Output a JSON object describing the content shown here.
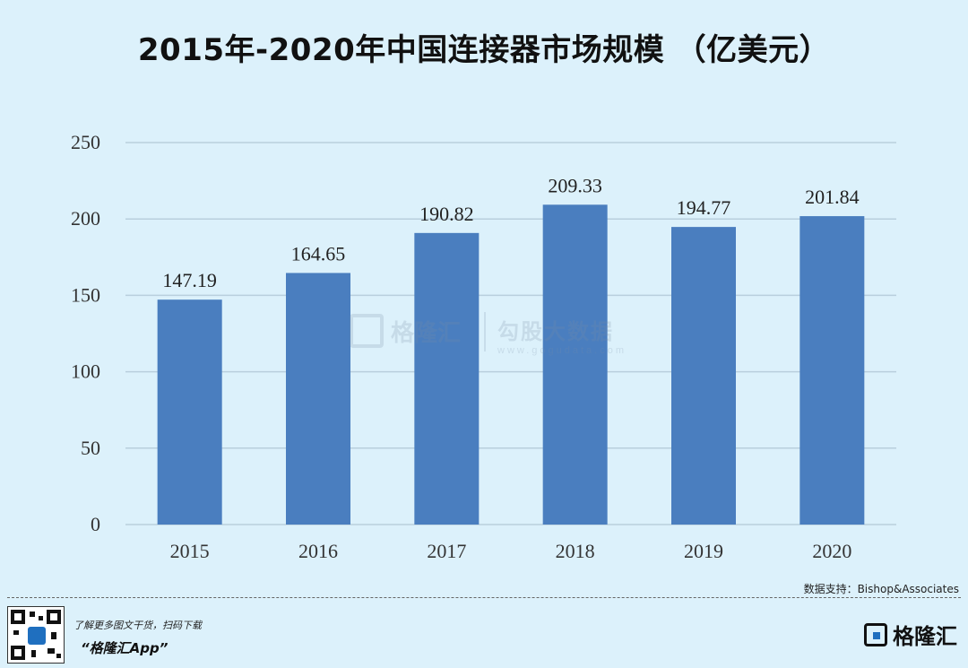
{
  "title": "2015年-2020年中国连接器市场规模 （亿美元）",
  "chart_data": {
    "type": "bar",
    "categories": [
      "2015",
      "2016",
      "2017",
      "2018",
      "2019",
      "2020"
    ],
    "values": [
      147.19,
      164.65,
      190.82,
      209.33,
      194.77,
      201.84
    ],
    "value_labels": [
      "147.19",
      "164.65",
      "190.82",
      "209.33",
      "194.77",
      "201.84"
    ],
    "title": "2015年-2020年中国连接器市场规模 （亿美元）",
    "xlabel": "",
    "ylabel": "",
    "ylim": [
      0,
      250
    ],
    "yticks": [
      0,
      50,
      100,
      150,
      200,
      250
    ],
    "grid": true,
    "bar_color": "#4a7ebf",
    "grid_color": "#b9cfdd"
  },
  "watermark": {
    "brand": "格隆汇",
    "partner": "勾股大数据",
    "partner_url": "www.gogudata.com"
  },
  "source": "数据支持：Bishop&Associates",
  "footer": {
    "promo_line": "了解更多图文干货，扫码下载",
    "app_name": "“格隆汇App”",
    "brand": "格隆汇"
  },
  "colors": {
    "background": "#dcf1fb",
    "accent": "#1f6fbf"
  }
}
